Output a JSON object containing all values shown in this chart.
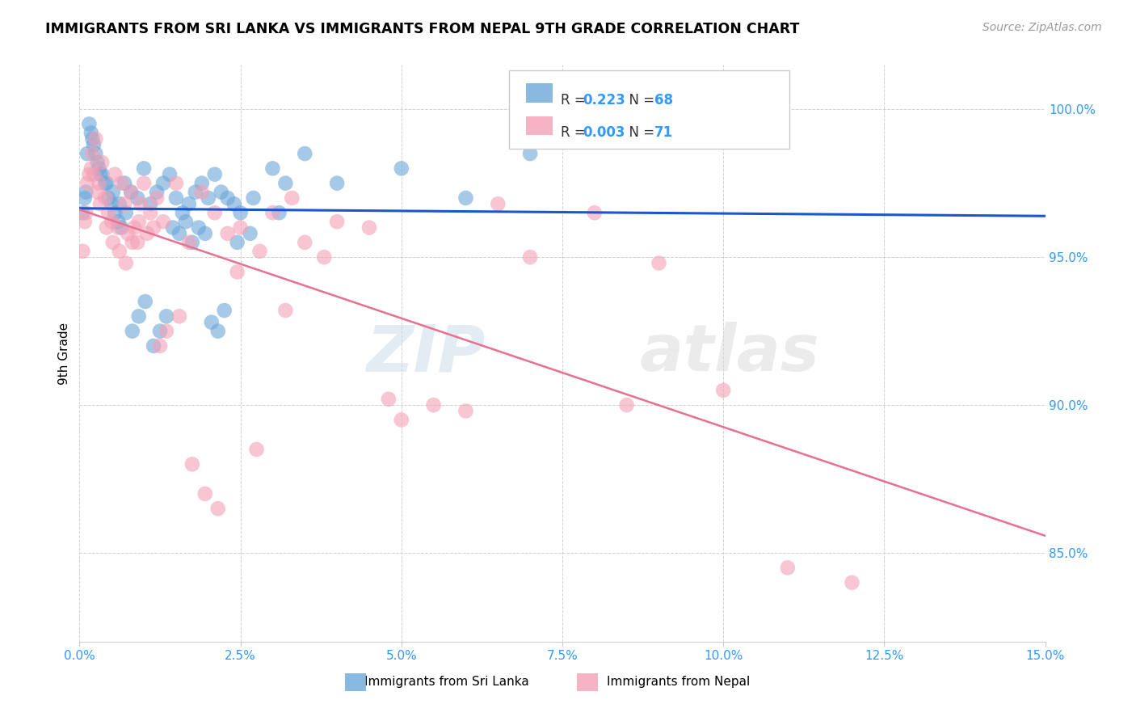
{
  "title": "IMMIGRANTS FROM SRI LANKA VS IMMIGRANTS FROM NEPAL 9TH GRADE CORRELATION CHART",
  "source": "Source: ZipAtlas.com",
  "ylabel": "9th Grade",
  "xlim": [
    0.0,
    15.0
  ],
  "ylim": [
    82.0,
    101.5
  ],
  "color_sri_lanka": "#6ca6d9",
  "color_nepal": "#f4a0b5",
  "trendline_sri_lanka_color": "#1a56cc",
  "trendline_nepal_color": "#e87090",
  "watermark_zip": "ZIP",
  "watermark_atlas": "atlas",
  "sri_lanka_x": [
    0.1,
    0.15,
    0.2,
    0.25,
    0.3,
    0.35,
    0.4,
    0.45,
    0.5,
    0.55,
    0.6,
    0.65,
    0.7,
    0.8,
    0.9,
    1.0,
    1.1,
    1.2,
    1.3,
    1.4,
    1.5,
    1.6,
    1.7,
    1.8,
    1.9,
    2.0,
    2.1,
    2.2,
    2.3,
    2.4,
    2.5,
    2.7,
    3.0,
    3.2,
    3.5,
    0.05,
    0.08,
    0.12,
    0.18,
    0.22,
    0.28,
    0.32,
    0.42,
    0.52,
    0.62,
    0.72,
    0.82,
    0.92,
    1.02,
    1.15,
    1.25,
    1.35,
    1.45,
    1.55,
    1.65,
    1.75,
    1.85,
    1.95,
    2.05,
    2.15,
    2.25,
    2.45,
    2.65,
    3.1,
    4.0,
    5.0,
    6.0,
    7.0
  ],
  "sri_lanka_y": [
    97.2,
    99.5,
    99.0,
    98.5,
    98.0,
    97.8,
    97.5,
    97.0,
    96.8,
    96.5,
    96.2,
    96.0,
    97.5,
    97.2,
    97.0,
    98.0,
    96.8,
    97.2,
    97.5,
    97.8,
    97.0,
    96.5,
    96.8,
    97.2,
    97.5,
    97.0,
    97.8,
    97.2,
    97.0,
    96.8,
    96.5,
    97.0,
    98.0,
    97.5,
    98.5,
    96.5,
    97.0,
    98.5,
    99.2,
    98.8,
    98.2,
    97.8,
    97.5,
    97.2,
    96.8,
    96.5,
    92.5,
    93.0,
    93.5,
    92.0,
    92.5,
    93.0,
    96.0,
    95.8,
    96.2,
    95.5,
    96.0,
    95.8,
    92.8,
    92.5,
    93.2,
    95.5,
    95.8,
    96.5,
    97.5,
    98.0,
    97.0,
    98.5
  ],
  "nepal_x": [
    0.05,
    0.1,
    0.15,
    0.2,
    0.25,
    0.3,
    0.35,
    0.4,
    0.45,
    0.5,
    0.55,
    0.6,
    0.65,
    0.7,
    0.75,
    0.8,
    0.85,
    0.9,
    0.95,
    1.0,
    1.1,
    1.2,
    1.3,
    1.5,
    1.7,
    1.9,
    2.1,
    2.3,
    2.5,
    2.8,
    3.0,
    3.3,
    3.5,
    4.0,
    4.5,
    5.0,
    5.5,
    6.0,
    7.0,
    8.0,
    9.0,
    10.0,
    0.08,
    0.12,
    0.18,
    0.22,
    0.28,
    0.32,
    0.42,
    0.52,
    0.62,
    0.72,
    0.82,
    0.92,
    1.05,
    1.15,
    1.25,
    1.35,
    1.55,
    1.75,
    1.95,
    2.15,
    2.45,
    2.75,
    3.2,
    3.8,
    4.8,
    6.5,
    8.5,
    11.0,
    12.0
  ],
  "nepal_y": [
    95.2,
    96.5,
    97.8,
    98.5,
    99.0,
    97.5,
    98.2,
    97.0,
    96.5,
    96.2,
    97.8,
    96.0,
    97.5,
    96.8,
    95.8,
    97.2,
    96.0,
    95.5,
    96.8,
    97.5,
    96.5,
    97.0,
    96.2,
    97.5,
    95.5,
    97.2,
    96.5,
    95.8,
    96.0,
    95.2,
    96.5,
    97.0,
    95.5,
    96.2,
    96.0,
    89.5,
    90.0,
    89.8,
    95.0,
    96.5,
    94.8,
    90.5,
    96.2,
    97.5,
    98.0,
    97.8,
    97.2,
    96.8,
    96.0,
    95.5,
    95.2,
    94.8,
    95.5,
    96.2,
    95.8,
    96.0,
    92.0,
    92.5,
    93.0,
    88.0,
    87.0,
    86.5,
    94.5,
    88.5,
    93.2,
    95.0,
    90.2,
    96.8,
    90.0,
    84.5,
    84.0
  ],
  "x_ticks": [
    0.0,
    2.5,
    5.0,
    7.5,
    10.0,
    12.5,
    15.0
  ],
  "y_ticks": [
    82.0,
    85.0,
    90.0,
    95.0,
    100.0
  ],
  "legend_r1": "0.223",
  "legend_n1": "68",
  "legend_r2": "0.003",
  "legend_n2": "71",
  "legend_label1": "Immigrants from Sri Lanka",
  "legend_label2": "Immigrants from Nepal",
  "text_color_blue": "#3399ff",
  "text_color_black": "#333333",
  "source_color": "#999999"
}
